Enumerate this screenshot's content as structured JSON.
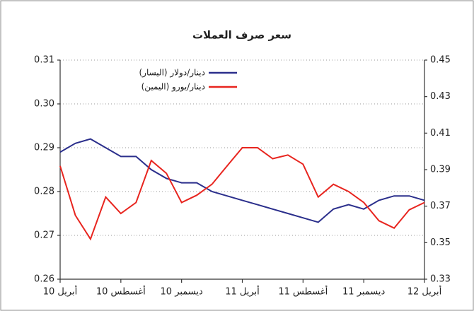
{
  "chart_data": {
    "type": "line",
    "title": "سعر صرف العملات",
    "categories": [
      "أبريل 10",
      null,
      null,
      null,
      "أغسطس 10",
      null,
      null,
      null,
      "ديسمبر 10",
      null,
      null,
      null,
      "أبريل 11",
      null,
      null,
      null,
      "أغسطس 11",
      null,
      null,
      null,
      "ديسمبر 11",
      null,
      null,
      null,
      "أبريل 12"
    ],
    "series": [
      {
        "name": "دينار/دولار (اليسار)",
        "color": "#2b2f8c",
        "axis": "y",
        "values": [
          0.289,
          0.291,
          0.292,
          0.29,
          0.288,
          0.288,
          0.285,
          0.283,
          0.282,
          0.282,
          0.28,
          0.279,
          0.278,
          0.277,
          0.276,
          0.275,
          0.274,
          0.273,
          0.276,
          0.277,
          0.276,
          0.278,
          0.279,
          0.279,
          0.278
        ]
      },
      {
        "name": "دينار/يورو (اليمين)",
        "color": "#e8251f",
        "axis": "y2",
        "values": [
          0.392,
          0.365,
          0.352,
          0.375,
          0.366,
          0.372,
          0.395,
          0.388,
          0.372,
          0.376,
          0.382,
          0.392,
          0.402,
          0.402,
          0.396,
          0.398,
          0.393,
          0.375,
          0.382,
          0.378,
          0.372,
          0.362,
          0.358,
          0.368,
          0.372
        ]
      }
    ],
    "ylim": [
      0.26,
      0.31
    ],
    "yticks": [
      0.26,
      0.27,
      0.28,
      0.29,
      {
        "value": 0.3,
        "label": "0.30"
      },
      0.31
    ],
    "y2lim": [
      0.33,
      0.45
    ],
    "y2ticks": [
      0.33,
      0.35,
      0.37,
      0.39,
      0.41,
      0.43,
      0.45
    ],
    "grid": true,
    "legend": "top-left"
  }
}
